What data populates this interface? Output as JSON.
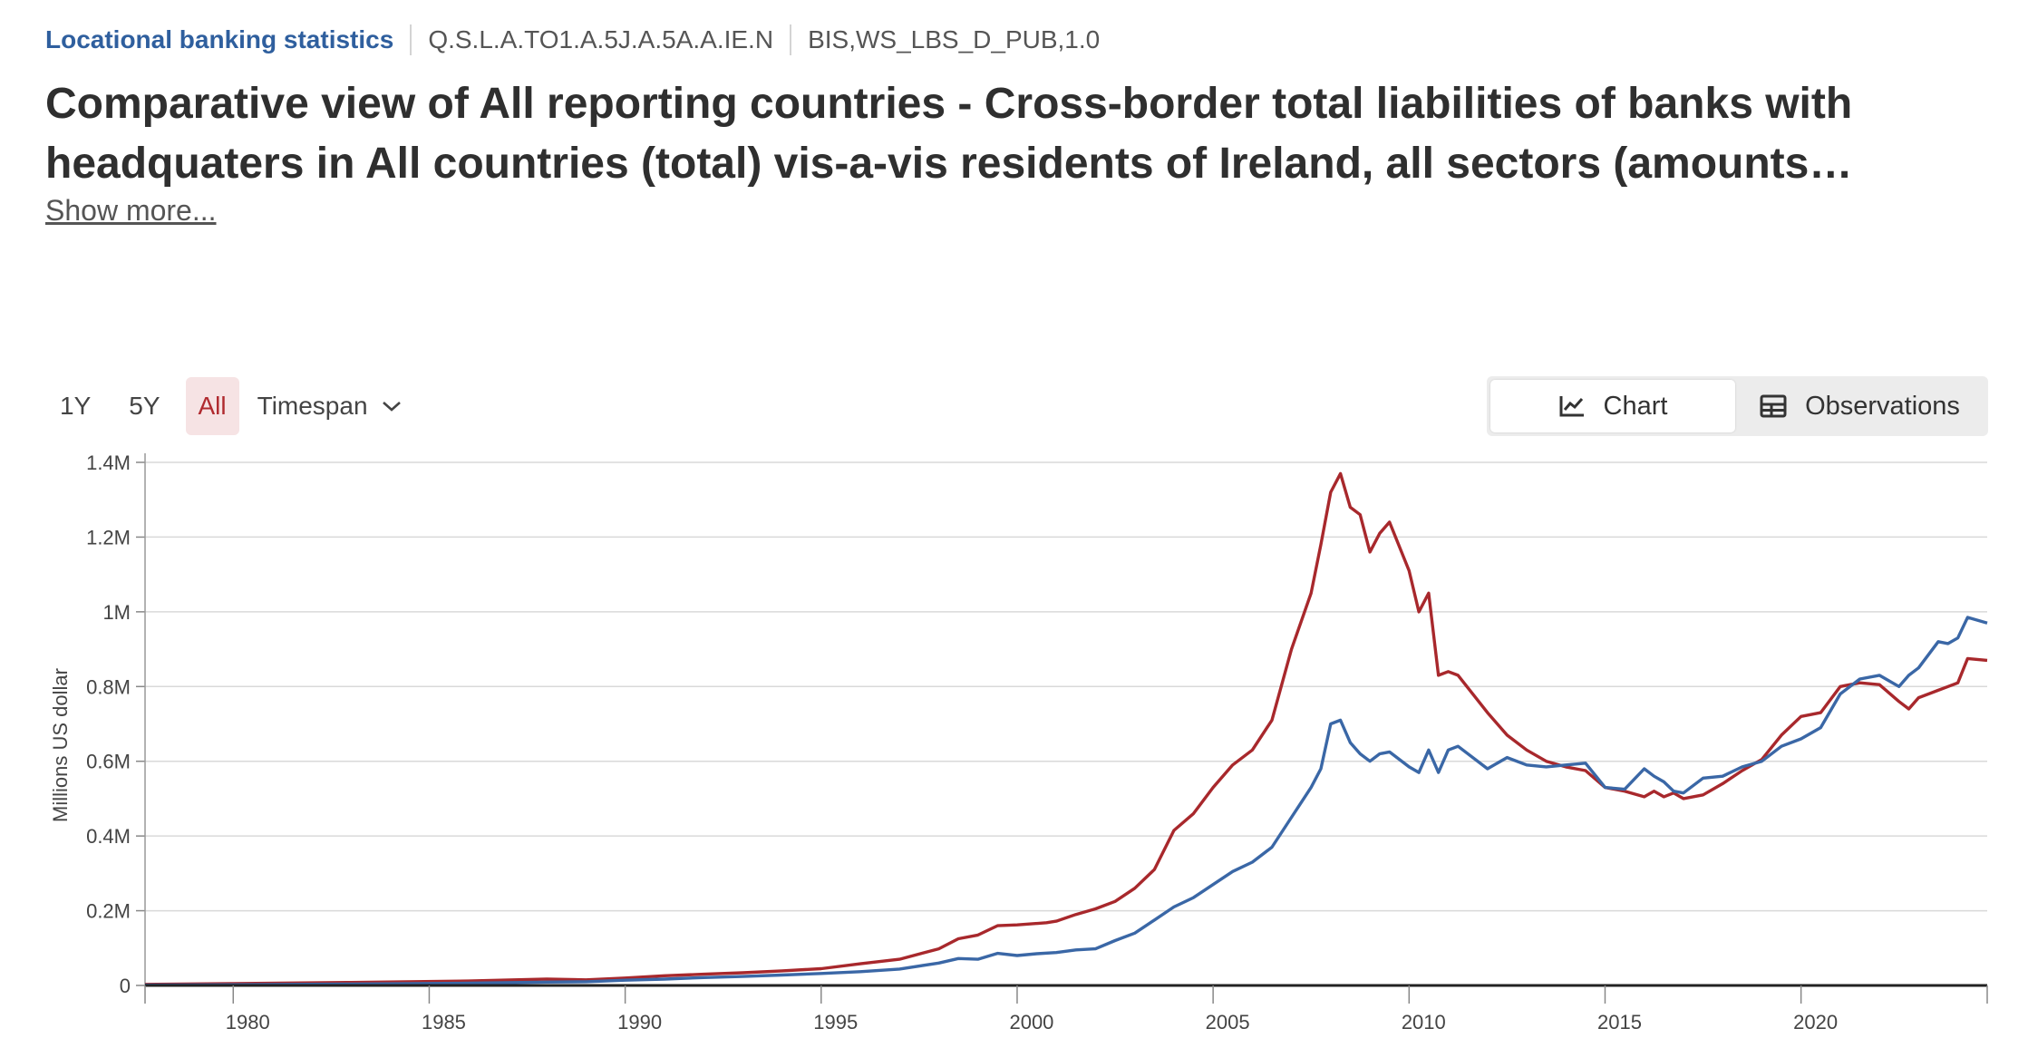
{
  "breadcrumb": {
    "dataset": "Locational banking statistics",
    "series_key": "Q.S.L.A.TO1.A.5J.A.5A.A.IE.N",
    "flow": "BIS,WS_LBS_D_PUB,1.0"
  },
  "title": "Comparative view of All reporting countries - Cross-border total liabilities of banks with headquaters in All countries (total) vis-a-vis residents of Ireland, all sectors (amounts…",
  "show_more": "Show more...",
  "range_buttons": [
    "1Y",
    "5Y",
    "All"
  ],
  "active_range": "All",
  "timespan_label": "Timespan",
  "view_toggle": {
    "chart_label": "Chart",
    "observations_label": "Observations",
    "active": "Chart"
  },
  "colors": {
    "red": "#a8282c",
    "blue": "#3a67a6",
    "axis": "#222222",
    "grid": "#d9d9d9",
    "accent": "#2f5f9e"
  },
  "chart_data": {
    "type": "line",
    "ylabel": "Millions US dollar",
    "xlabel": "",
    "x_ticks": [
      "1980",
      "1985",
      "1990",
      "1995",
      "2000",
      "2005",
      "2010",
      "2015",
      "2020"
    ],
    "y_ticks": [
      "0",
      "0.2M",
      "0.4M",
      "0.6M",
      "0.8M",
      "1M",
      "1.2M",
      "1.4M"
    ],
    "xlim": [
      1977.75,
      2024.75
    ],
    "ylim": [
      0,
      1400000
    ],
    "grid": "horizontal",
    "series": [
      {
        "color": "#a8282c",
        "points": [
          [
            1977.75,
            3000
          ],
          [
            1980,
            5000
          ],
          [
            1983,
            8000
          ],
          [
            1986,
            12000
          ],
          [
            1988,
            17000
          ],
          [
            1989,
            15000
          ],
          [
            1990,
            20000
          ],
          [
            1991,
            26000
          ],
          [
            1992,
            30000
          ],
          [
            1993,
            34000
          ],
          [
            1994,
            39000
          ],
          [
            1995,
            45000
          ],
          [
            1996,
            58000
          ],
          [
            1997,
            70000
          ],
          [
            1998,
            98000
          ],
          [
            1998.5,
            125000
          ],
          [
            1999,
            135000
          ],
          [
            1999.5,
            160000
          ],
          [
            2000,
            162000
          ],
          [
            2000.75,
            168000
          ],
          [
            2001,
            172000
          ],
          [
            2001.5,
            190000
          ],
          [
            2002,
            205000
          ],
          [
            2002.5,
            225000
          ],
          [
            2003,
            260000
          ],
          [
            2003.5,
            310000
          ],
          [
            2004,
            415000
          ],
          [
            2004.5,
            460000
          ],
          [
            2005,
            530000
          ],
          [
            2005.5,
            590000
          ],
          [
            2006,
            630000
          ],
          [
            2006.5,
            710000
          ],
          [
            2007,
            900000
          ],
          [
            2007.5,
            1050000
          ],
          [
            2007.75,
            1180000
          ],
          [
            2008,
            1320000
          ],
          [
            2008.25,
            1370000
          ],
          [
            2008.5,
            1280000
          ],
          [
            2008.75,
            1260000
          ],
          [
            2009,
            1160000
          ],
          [
            2009.25,
            1210000
          ],
          [
            2009.5,
            1240000
          ],
          [
            2010,
            1110000
          ],
          [
            2010.25,
            1000000
          ],
          [
            2010.5,
            1050000
          ],
          [
            2010.75,
            830000
          ],
          [
            2011,
            840000
          ],
          [
            2011.25,
            830000
          ],
          [
            2012,
            730000
          ],
          [
            2012.5,
            670000
          ],
          [
            2013,
            630000
          ],
          [
            2013.5,
            600000
          ],
          [
            2014,
            585000
          ],
          [
            2014.5,
            575000
          ],
          [
            2015,
            530000
          ],
          [
            2015.5,
            520000
          ],
          [
            2016,
            505000
          ],
          [
            2016.25,
            520000
          ],
          [
            2016.5,
            505000
          ],
          [
            2016.75,
            515000
          ],
          [
            2017,
            500000
          ],
          [
            2017.5,
            510000
          ],
          [
            2018,
            540000
          ],
          [
            2018.5,
            575000
          ],
          [
            2019,
            605000
          ],
          [
            2019.5,
            670000
          ],
          [
            2020,
            720000
          ],
          [
            2020.5,
            730000
          ],
          [
            2021,
            800000
          ],
          [
            2021.5,
            810000
          ],
          [
            2022,
            805000
          ],
          [
            2022.5,
            760000
          ],
          [
            2022.75,
            740000
          ],
          [
            2023,
            770000
          ],
          [
            2023.5,
            790000
          ],
          [
            2023.75,
            800000
          ],
          [
            2024,
            810000
          ],
          [
            2024.25,
            875000
          ],
          [
            2024.75,
            870000
          ]
        ]
      },
      {
        "color": "#3a67a6",
        "points": [
          [
            1977.75,
            1000
          ],
          [
            1980,
            2000
          ],
          [
            1983,
            4000
          ],
          [
            1986,
            6000
          ],
          [
            1988,
            9000
          ],
          [
            1989,
            10000
          ],
          [
            1990,
            14000
          ],
          [
            1991,
            17000
          ],
          [
            1992,
            21000
          ],
          [
            1993,
            24000
          ],
          [
            1994,
            28000
          ],
          [
            1995,
            32000
          ],
          [
            1996,
            37000
          ],
          [
            1997,
            44000
          ],
          [
            1998,
            60000
          ],
          [
            1998.5,
            72000
          ],
          [
            1999,
            70000
          ],
          [
            1999.5,
            86000
          ],
          [
            2000,
            80000
          ],
          [
            2000.5,
            85000
          ],
          [
            2001,
            88000
          ],
          [
            2001.5,
            95000
          ],
          [
            2002,
            98000
          ],
          [
            2002.5,
            120000
          ],
          [
            2003,
            140000
          ],
          [
            2003.5,
            175000
          ],
          [
            2004,
            210000
          ],
          [
            2004.5,
            235000
          ],
          [
            2005,
            270000
          ],
          [
            2005.5,
            305000
          ],
          [
            2006,
            330000
          ],
          [
            2006.5,
            370000
          ],
          [
            2007,
            450000
          ],
          [
            2007.5,
            530000
          ],
          [
            2007.75,
            580000
          ],
          [
            2008,
            700000
          ],
          [
            2008.25,
            710000
          ],
          [
            2008.5,
            650000
          ],
          [
            2008.75,
            620000
          ],
          [
            2009,
            600000
          ],
          [
            2009.25,
            620000
          ],
          [
            2009.5,
            625000
          ],
          [
            2010,
            585000
          ],
          [
            2010.25,
            570000
          ],
          [
            2010.5,
            630000
          ],
          [
            2010.75,
            570000
          ],
          [
            2011,
            630000
          ],
          [
            2011.25,
            640000
          ],
          [
            2012,
            580000
          ],
          [
            2012.5,
            610000
          ],
          [
            2013,
            590000
          ],
          [
            2013.5,
            585000
          ],
          [
            2014,
            590000
          ],
          [
            2014.5,
            595000
          ],
          [
            2015,
            530000
          ],
          [
            2015.5,
            525000
          ],
          [
            2016,
            580000
          ],
          [
            2016.25,
            560000
          ],
          [
            2016.5,
            545000
          ],
          [
            2016.75,
            520000
          ],
          [
            2017,
            515000
          ],
          [
            2017.5,
            555000
          ],
          [
            2018,
            560000
          ],
          [
            2018.5,
            585000
          ],
          [
            2019,
            600000
          ],
          [
            2019.5,
            640000
          ],
          [
            2020,
            660000
          ],
          [
            2020.5,
            690000
          ],
          [
            2021,
            780000
          ],
          [
            2021.5,
            820000
          ],
          [
            2022,
            830000
          ],
          [
            2022.5,
            800000
          ],
          [
            2022.75,
            830000
          ],
          [
            2023,
            850000
          ],
          [
            2023.5,
            920000
          ],
          [
            2023.75,
            915000
          ],
          [
            2024,
            930000
          ],
          [
            2024.25,
            985000
          ],
          [
            2024.75,
            970000
          ]
        ]
      }
    ]
  }
}
